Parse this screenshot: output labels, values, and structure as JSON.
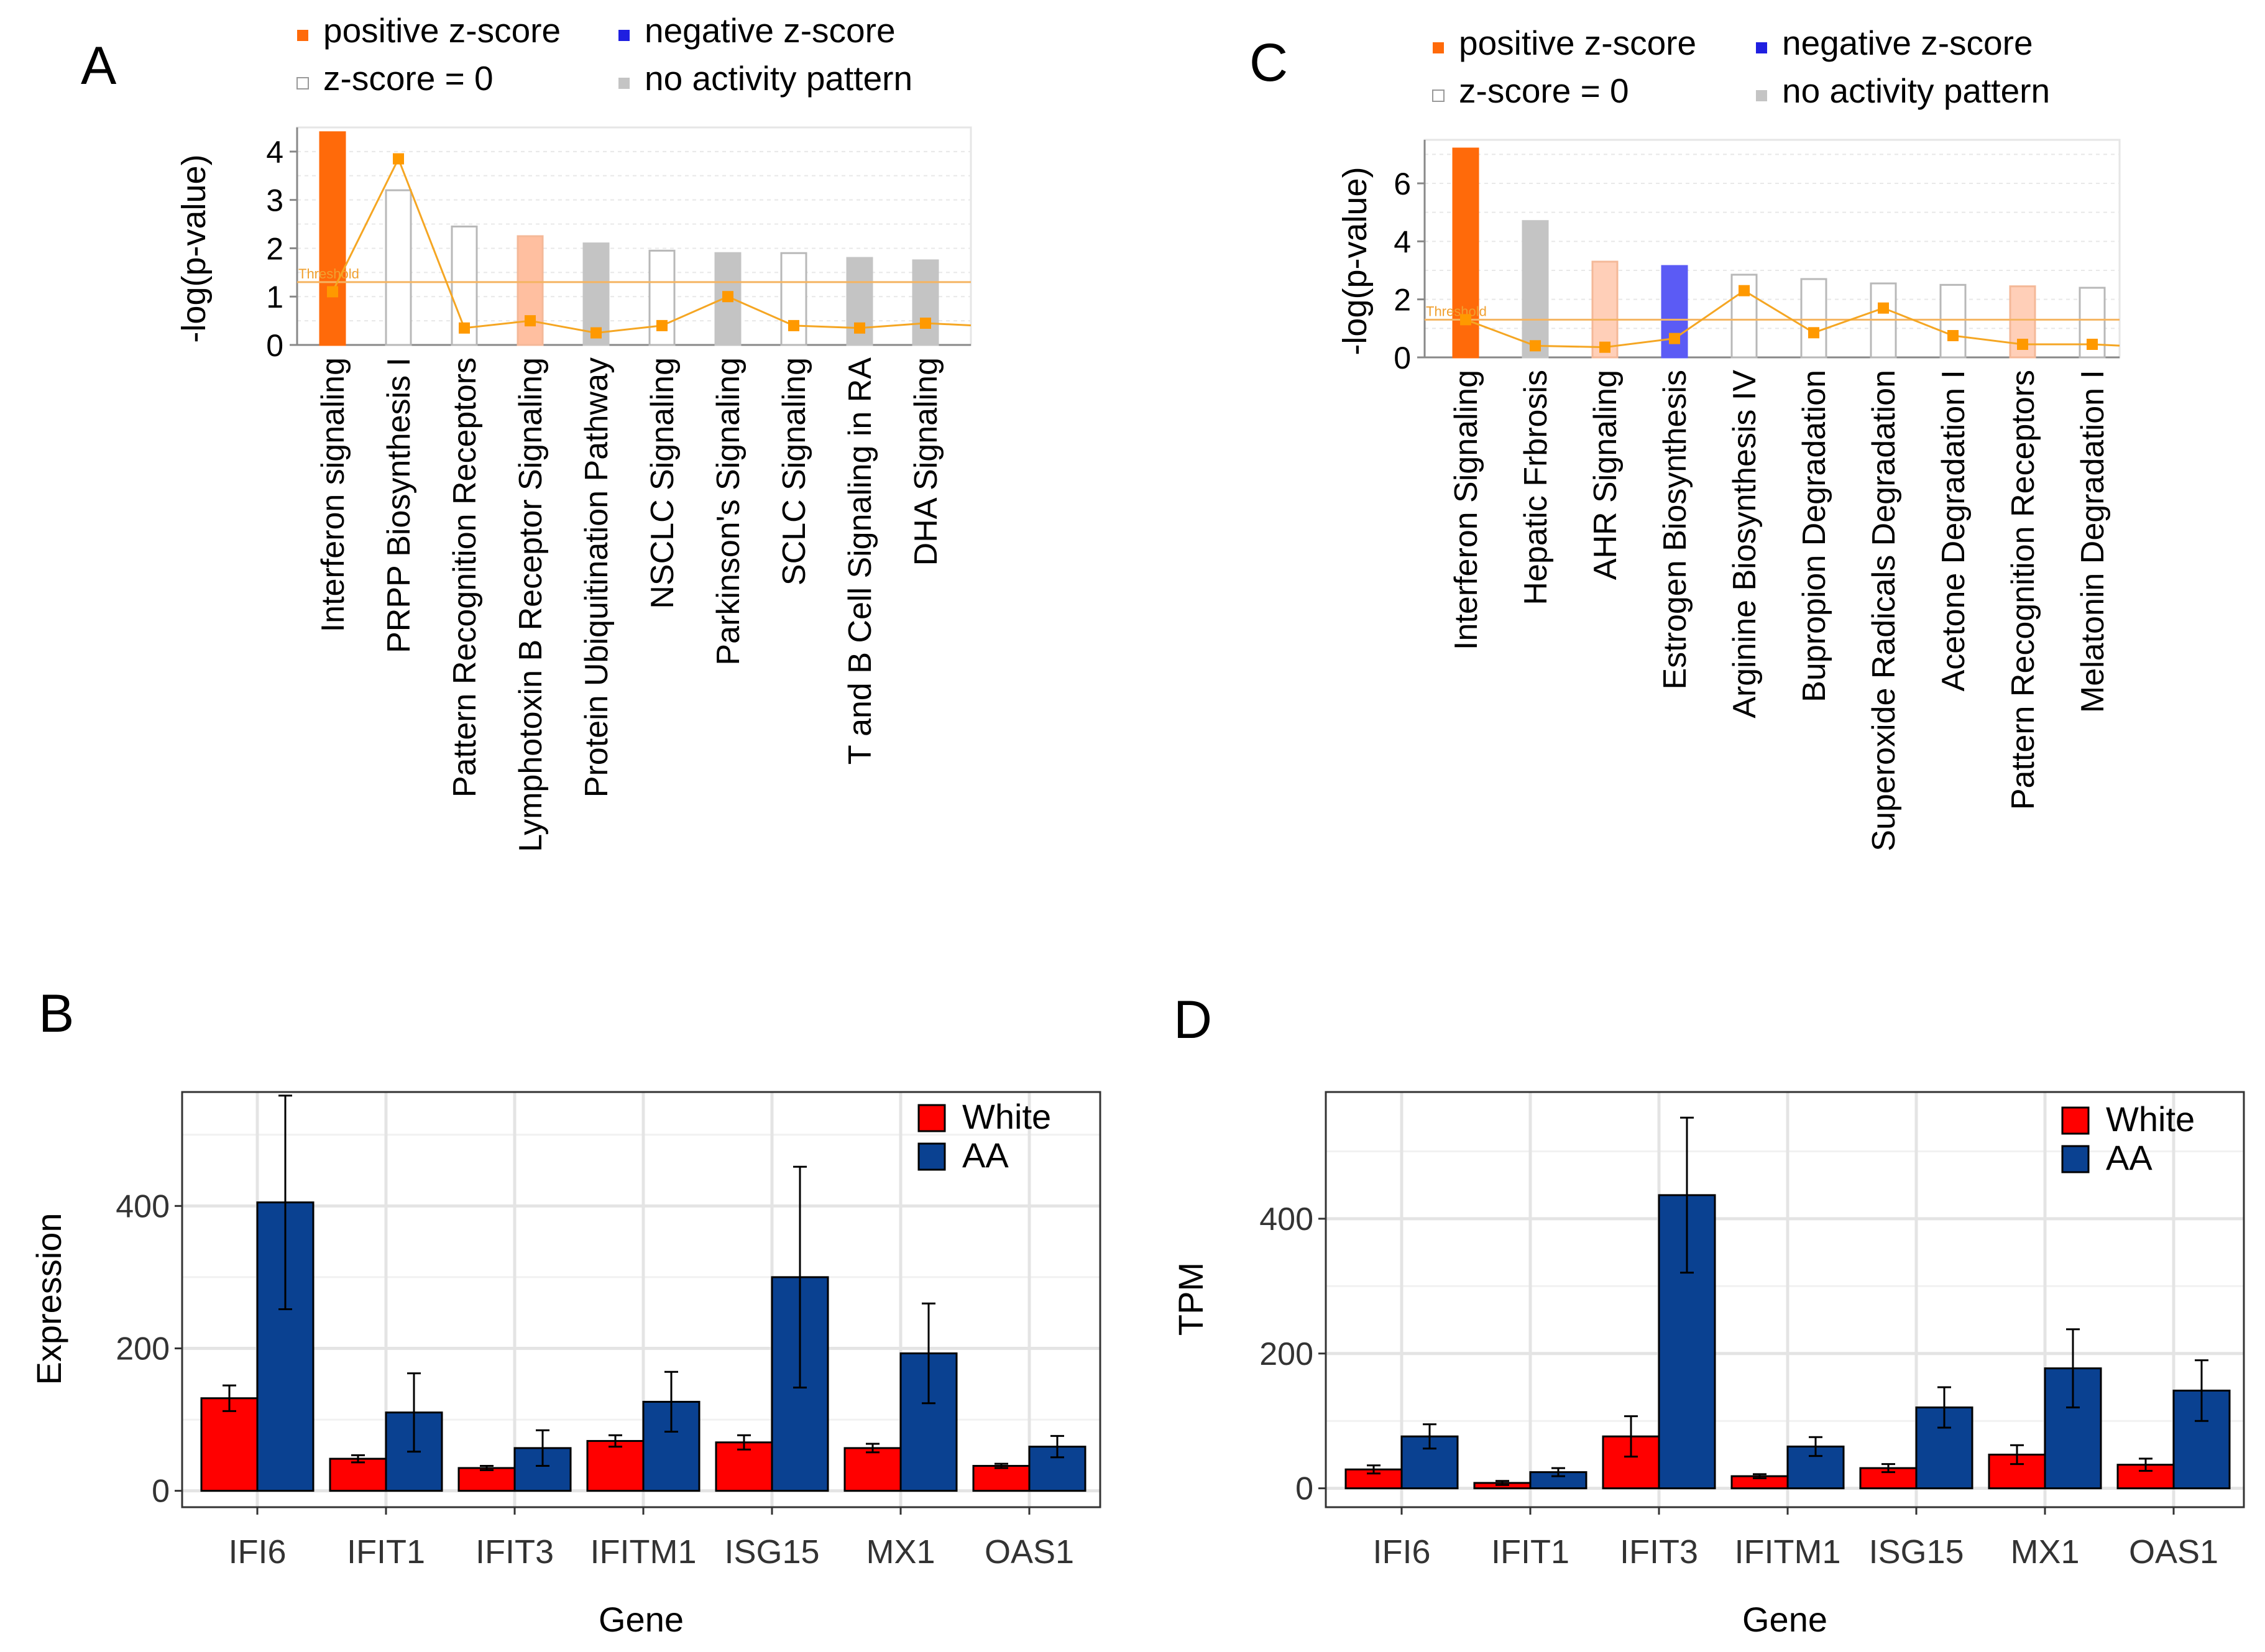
{
  "chart_data": [
    {
      "panel": "A",
      "type": "bar",
      "chart_kind": "ipa-pathway",
      "ylabel": "-log(p-value)",
      "ylim": [
        0,
        4.5
      ],
      "yticks": [
        0,
        1,
        2,
        3,
        4
      ],
      "threshold": 1.3,
      "threshold_label": "Threshold",
      "legend": {
        "positive": "positive z-score",
        "negative": "negative z-score",
        "zero": "z-score = 0",
        "none": "no activity pattern"
      },
      "categories": [
        "Interferon signaling",
        "PRPP Biosynthesis I",
        "Pattern Recognition Receptors",
        "Lymphotoxin B Receptor Signaling",
        "Protein Ubiquitination Pathway",
        "NSCLC Signaling",
        "Parkinson's Signaling",
        "SCLC Signaling",
        "T and B Cell Signaling in RA",
        "DHA Signaling"
      ],
      "values": [
        4.4,
        3.2,
        2.45,
        2.25,
        2.1,
        1.95,
        1.9,
        1.9,
        1.8,
        1.75
      ],
      "bar_kinds": [
        "positive",
        "zero",
        "zero",
        "positive-light",
        "none",
        "zero",
        "none",
        "zero",
        "none",
        "none"
      ],
      "ratio": [
        1.1,
        3.85,
        0.35,
        0.5,
        0.25,
        0.4,
        1.0,
        0.4,
        0.35,
        0.45
      ],
      "colors": {
        "positive": "#ff6a0a",
        "positive-light": "#ffbfa0",
        "negative": "#5b5bf5",
        "none": "#c4c4c4",
        "line": "#f5a623",
        "marker": "#ff9900"
      }
    },
    {
      "panel": "C",
      "type": "bar",
      "chart_kind": "ipa-pathway",
      "ylabel": "-log(p-value)",
      "ylim": [
        0,
        7.5
      ],
      "yticks": [
        0,
        2,
        4,
        6
      ],
      "threshold": 1.3,
      "threshold_label": "Threshold",
      "legend": {
        "positive": "positive z-score",
        "negative": "negative z-score",
        "zero": "z-score = 0",
        "none": "no activity pattern"
      },
      "categories": [
        "Interferon Signaling",
        "Hepatic Frbrosis",
        "AHR Signaling",
        "Estrogen Biosynthesis",
        "Arginine Biosynthesis IV",
        "Bupropion Degradation",
        "Superoxide Radicals Degradation",
        "Acetone Degradation I",
        "Pattern Recognition Receptors",
        "Melatonin Degradation I"
      ],
      "values": [
        7.2,
        4.7,
        3.3,
        3.15,
        2.85,
        2.7,
        2.55,
        2.5,
        2.45,
        2.4
      ],
      "bar_kinds": [
        "positive",
        "none",
        "positive-light",
        "negative",
        "zero",
        "zero",
        "zero",
        "zero",
        "positive-light",
        "zero"
      ],
      "ratio": [
        1.3,
        0.4,
        0.35,
        0.65,
        2.3,
        0.85,
        1.7,
        0.75,
        0.45,
        0.45
      ],
      "colors": {
        "positive": "#ff6a0a",
        "positive-light": "#ffcfb8",
        "negative": "#5b5bf5",
        "none": "#c4c4c4",
        "line": "#f5a623",
        "marker": "#ff9900"
      }
    },
    {
      "panel": "B",
      "type": "bar",
      "chart_kind": "grouped",
      "xlabel": "Gene",
      "ylabel": "Expression",
      "ylim": [
        -23,
        560
      ],
      "yticks": [
        0,
        200,
        400
      ],
      "categories": [
        "IFI6",
        "IFIT1",
        "IFIT3",
        "IFITM1",
        "ISG15",
        "MX1",
        "OAS1"
      ],
      "series": [
        {
          "name": "White",
          "color": "#ff0000",
          "values": [
            130,
            45,
            32,
            70,
            68,
            60,
            35
          ],
          "err": [
            18,
            5,
            3,
            8,
            10,
            6,
            3
          ]
        },
        {
          "name": "AA",
          "color": "#0a4191",
          "values": [
            405,
            110,
            60,
            125,
            300,
            193,
            62
          ],
          "err": [
            150,
            55,
            25,
            42,
            155,
            70,
            15
          ]
        }
      ]
    },
    {
      "panel": "D",
      "type": "bar",
      "chart_kind": "grouped",
      "xlabel": "Gene",
      "ylabel": "TPM",
      "ylim": [
        -28,
        588
      ],
      "yticks": [
        0,
        200,
        400
      ],
      "categories": [
        "IFI6",
        "IFIT1",
        "IFIT3",
        "IFITM1",
        "ISG15",
        "MX1",
        "OAS1"
      ],
      "series": [
        {
          "name": "White",
          "color": "#ff0000",
          "values": [
            28,
            8,
            77,
            18,
            30,
            50,
            35
          ],
          "err": [
            6,
            3,
            30,
            3,
            6,
            14,
            9
          ]
        },
        {
          "name": "AA",
          "color": "#0a4191",
          "values": [
            77,
            24,
            435,
            62,
            120,
            178,
            145
          ],
          "err": [
            18,
            6,
            115,
            14,
            30,
            58,
            45
          ]
        }
      ]
    }
  ]
}
